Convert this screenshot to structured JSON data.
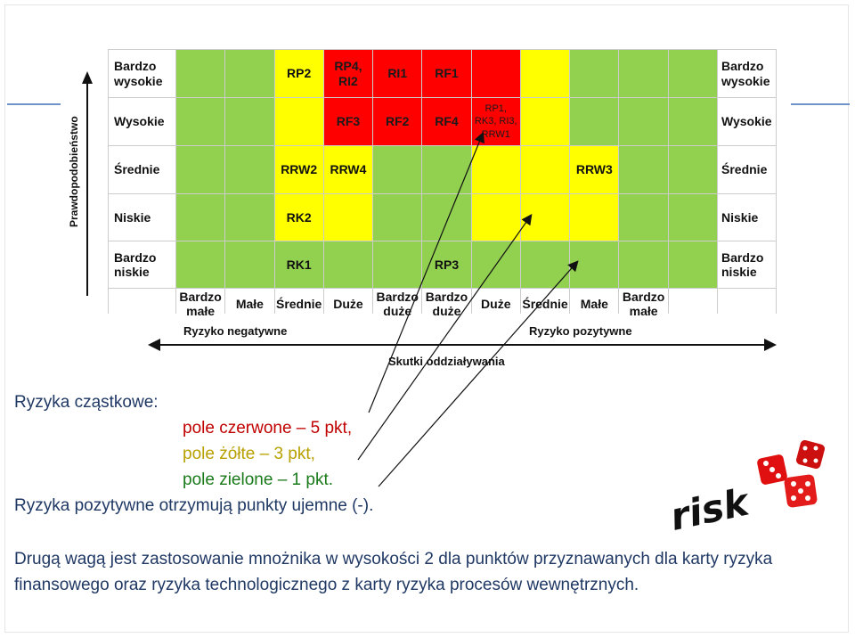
{
  "matrix": {
    "rows": [
      {
        "label_left": "Bardzo\nwysokie",
        "label_right": "Bardzo\nwysokie",
        "cells": [
          {
            "color": "g",
            "text": ""
          },
          {
            "color": "g",
            "text": ""
          },
          {
            "color": "y",
            "text": "RP2"
          },
          {
            "color": "r",
            "text": "RP4,\nRI2"
          },
          {
            "color": "r",
            "text": "RI1"
          },
          {
            "color": "r",
            "text": "RF1"
          },
          {
            "color": "r",
            "text": ""
          },
          {
            "color": "y",
            "text": ""
          },
          {
            "color": "g",
            "text": ""
          },
          {
            "color": "g",
            "text": ""
          },
          {
            "color": "g",
            "text": ""
          }
        ]
      },
      {
        "label_left": "Wysokie",
        "label_right": "Wysokie",
        "cells": [
          {
            "color": "g",
            "text": ""
          },
          {
            "color": "g",
            "text": ""
          },
          {
            "color": "y",
            "text": ""
          },
          {
            "color": "r",
            "text": "RF3"
          },
          {
            "color": "r",
            "text": "RF2"
          },
          {
            "color": "r",
            "text": "RF4"
          },
          {
            "color": "r",
            "text": "RP1,\nRK3, RI3,\nRRW1",
            "small": true
          },
          {
            "color": "y",
            "text": ""
          },
          {
            "color": "g",
            "text": ""
          },
          {
            "color": "g",
            "text": ""
          },
          {
            "color": "g",
            "text": ""
          }
        ]
      },
      {
        "label_left": "Średnie",
        "label_right": "Średnie",
        "cells": [
          {
            "color": "g",
            "text": ""
          },
          {
            "color": "g",
            "text": ""
          },
          {
            "color": "y",
            "text": "RRW2"
          },
          {
            "color": "y",
            "text": "RRW4"
          },
          {
            "color": "g",
            "text": ""
          },
          {
            "color": "g",
            "text": ""
          },
          {
            "color": "y",
            "text": ""
          },
          {
            "color": "y",
            "text": ""
          },
          {
            "color": "y",
            "text": "RRW3"
          },
          {
            "color": "g",
            "text": ""
          },
          {
            "color": "g",
            "text": ""
          }
        ]
      },
      {
        "label_left": "Niskie",
        "label_right": "Niskie",
        "cells": [
          {
            "color": "g",
            "text": ""
          },
          {
            "color": "g",
            "text": ""
          },
          {
            "color": "y",
            "text": "RK2"
          },
          {
            "color": "y",
            "text": ""
          },
          {
            "color": "g",
            "text": ""
          },
          {
            "color": "g",
            "text": ""
          },
          {
            "color": "y",
            "text": ""
          },
          {
            "color": "y",
            "text": ""
          },
          {
            "color": "y",
            "text": ""
          },
          {
            "color": "g",
            "text": ""
          },
          {
            "color": "g",
            "text": ""
          }
        ]
      },
      {
        "label_left": "Bardzo\nniskie",
        "label_right": "Bardzo\nniskie",
        "cells": [
          {
            "color": "g",
            "text": ""
          },
          {
            "color": "g",
            "text": ""
          },
          {
            "color": "g",
            "text": "RK1"
          },
          {
            "color": "g",
            "text": ""
          },
          {
            "color": "g",
            "text": ""
          },
          {
            "color": "g",
            "text": "RP3"
          },
          {
            "color": "g",
            "text": ""
          },
          {
            "color": "g",
            "text": ""
          },
          {
            "color": "g",
            "text": ""
          },
          {
            "color": "g",
            "text": ""
          },
          {
            "color": "g",
            "text": ""
          }
        ]
      }
    ],
    "col_labels": [
      "Bardzo\nmałe",
      "Małe",
      "Średnie",
      "Duże",
      "Bardzo\nduże",
      "Bardzo\nduże",
      "Duże",
      "Średnie",
      "Małe",
      "Bardzo\nmałe",
      ""
    ]
  },
  "axes": {
    "y_label": "Prawdopodobieństwo",
    "x_negative": "Ryzyko negatywne",
    "x_positive": "Ryzyko pozytywne",
    "x_title": "Skutki oddziaływania"
  },
  "text": {
    "line1": "Ryzyka cząstkowe:",
    "red": "pole czerwone – 5 pkt,",
    "yellow": "pole żółte – 3 pkt,",
    "green": "pole zielone – 1 pkt.",
    "line5": "Ryzyka pozytywne otrzymują punkty ujemne (-).",
    "paragraph": "Drugą wagą jest zastosowanie mnożnika w wysokości 2 dla punktów przyznawanych dla karty ryzyka finansowego oraz ryzyka technologicznego z karty ryzyka procesów wewnętrznych."
  },
  "image": {
    "word": "risk"
  },
  "colors": {
    "red": "#ff0000",
    "yellow": "#ffff00",
    "green": "#92d050",
    "text_blue": "#1f3864"
  }
}
